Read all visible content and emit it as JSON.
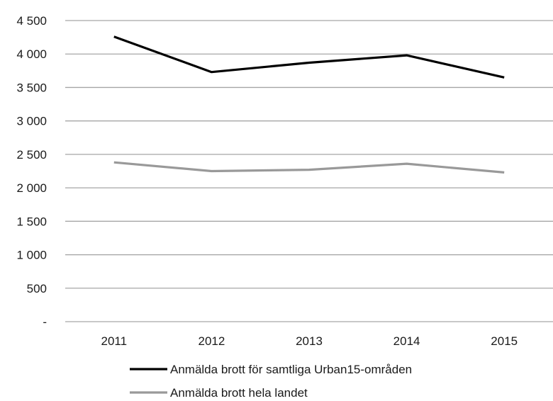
{
  "chart_data": {
    "type": "line",
    "categories": [
      "2011",
      "2012",
      "2013",
      "2014",
      "2015"
    ],
    "y_tick_labels": [
      "-",
      "500",
      "1 000",
      "1 500",
      "2 000",
      "2 500",
      "3 000",
      "3 500",
      "4 000",
      "4 500"
    ],
    "ylim": [
      0,
      4500
    ],
    "grid": true,
    "legend_position": "bottom",
    "series": [
      {
        "name": "Anmälda brott för samtliga Urban15-områden",
        "color": "#000000",
        "values": [
          4260,
          3730,
          3870,
          3980,
          3650
        ]
      },
      {
        "name": "Anmälda brott hela landet",
        "color": "#999999",
        "values": [
          2380,
          2250,
          2270,
          2360,
          2230
        ]
      }
    ]
  }
}
